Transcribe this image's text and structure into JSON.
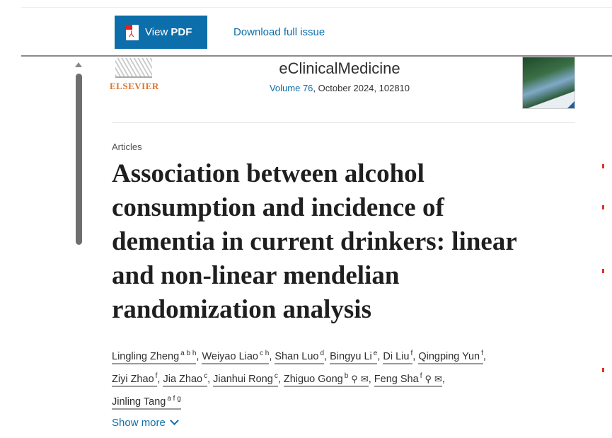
{
  "toolbar": {
    "view_pdf_prefix": "View",
    "view_pdf_bold": "PDF",
    "download": "Download full issue"
  },
  "publisher": {
    "logo_text": "ELSEVIER"
  },
  "journal": {
    "name": "eClinicalMedicine",
    "volume_link": "Volume 76",
    "volume_rest": ", October 2024, 102810"
  },
  "article": {
    "category": "Articles",
    "title_lines": [
      "Association between alcohol",
      "consumption and incidence of",
      "dementia in current drinkers: linear",
      "and non-linear mendelian",
      "randomization analysis"
    ]
  },
  "authors": [
    {
      "name": "Lingling Zheng",
      "aff": "a b h"
    },
    {
      "name": "Weiyao Liao",
      "aff": "c h"
    },
    {
      "name": "Shan Luo",
      "aff": "d"
    },
    {
      "name": "Bingyu Li",
      "aff": "e"
    },
    {
      "name": "Di Liu",
      "aff": "f"
    },
    {
      "name": "Qingping Yun",
      "aff": "f"
    },
    {
      "name": "Ziyi Zhao",
      "aff": "f"
    },
    {
      "name": "Jia Zhao",
      "aff": "c"
    },
    {
      "name": "Jianhui Rong",
      "aff": "c"
    },
    {
      "name": "Zhiguo Gong",
      "aff": "b"
    },
    {
      "name": "Feng Sha",
      "aff": "f"
    },
    {
      "name": "Jinling Tang",
      "aff": "a f g"
    }
  ],
  "show_more": "Show more"
}
